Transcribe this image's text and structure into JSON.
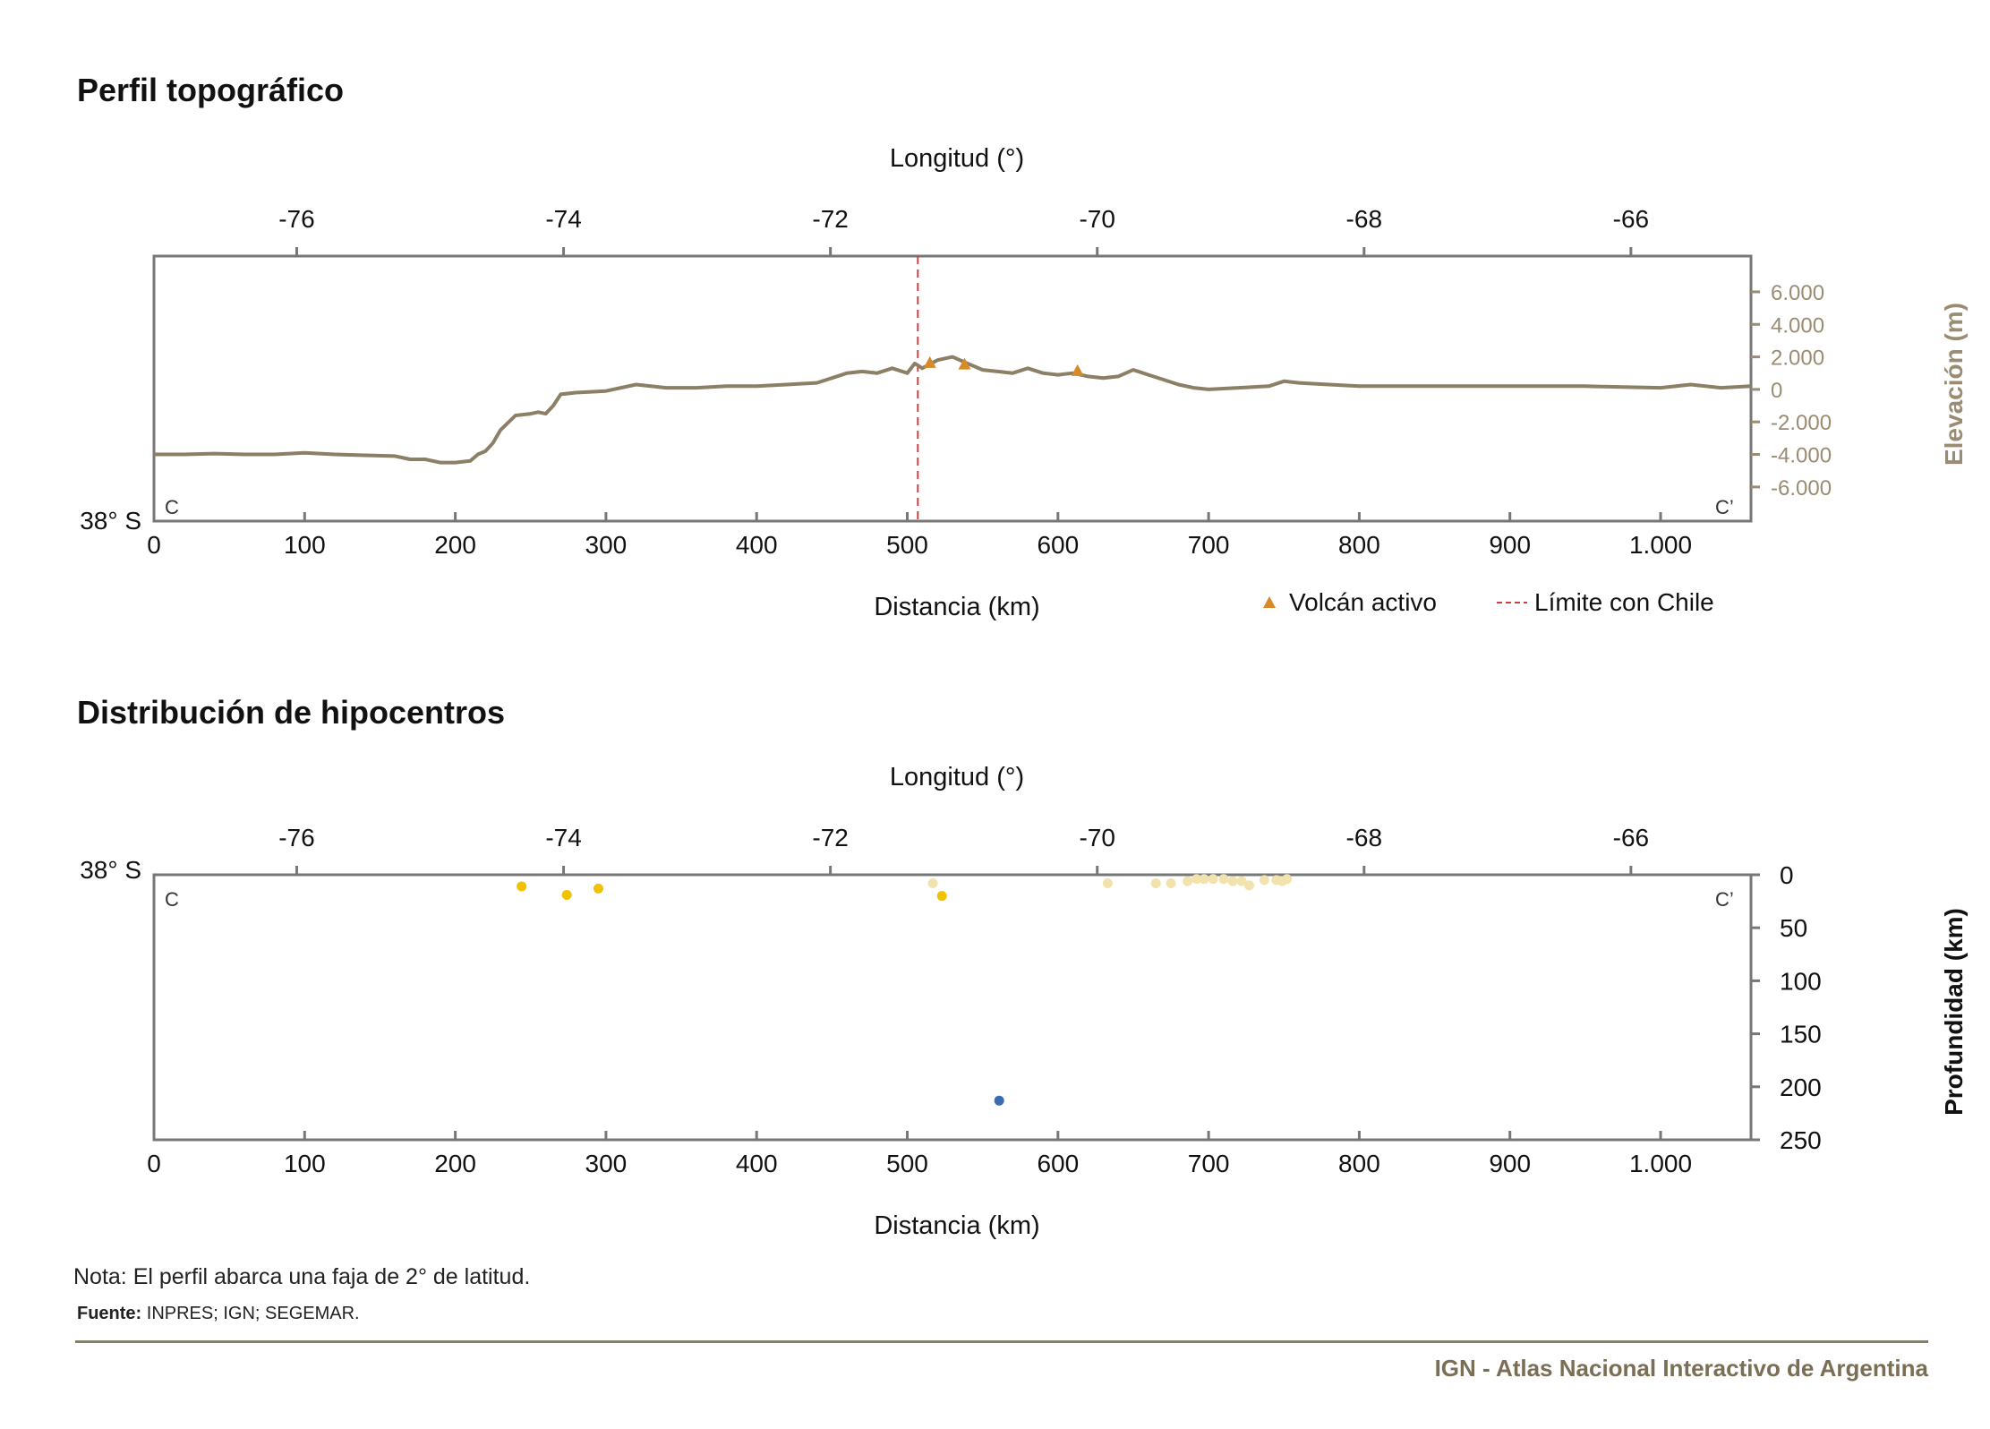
{
  "page": {
    "note": "Nota: El perfil abarca una faja de 2° de latitud.",
    "source_label": "Fuente:",
    "source_text": " INPRES; IGN; SEGEMAR.",
    "footer": "IGN - Atlas Nacional Interactivo de Argentina"
  },
  "colors": {
    "profile_line": "#8b7f66",
    "elevation_axis": "#9a8c72",
    "frame": "#777777",
    "chile_limit": "#d04040",
    "volcano": "#d98a28",
    "quake_shallow_dark": "#f2c100",
    "quake_shallow_light": "#f2e2ae",
    "quake_deep": "#3a6cb0"
  },
  "chart_data": [
    {
      "type": "line",
      "title": "Perfil topográfico",
      "xlabel": "Distancia (km)",
      "x_ticks": [
        0,
        100,
        200,
        300,
        400,
        500,
        600,
        700,
        800,
        900,
        1000
      ],
      "x_tick_labels": [
        "0",
        "100",
        "200",
        "300",
        "400",
        "500",
        "600",
        "700",
        "800",
        "900",
        "1.000"
      ],
      "xlim": [
        0,
        1060
      ],
      "top_axis_label": "Longitud (°)",
      "top_ticks": [
        -76,
        -74,
        -72,
        -70,
        -68,
        -66
      ],
      "top_tick_labels": [
        "-76",
        "-74",
        "-72",
        "-70",
        "-68",
        "-66"
      ],
      "top_xlim": [
        -77.07,
        -65.1
      ],
      "ylabel": "Elevación (m)",
      "y_ticks": [
        6000,
        4000,
        2000,
        0,
        -2000,
        -4000,
        -6000
      ],
      "y_tick_labels": [
        "6.000",
        "4.000",
        "2.000",
        "0",
        "-2.000",
        "-4.000",
        "-6.000"
      ],
      "ylim": [
        -8100,
        8200
      ],
      "latitude_label": "38° S",
      "start_label": "C",
      "end_label": "C’",
      "series": [
        {
          "x": [
            0,
            20,
            40,
            60,
            80,
            100,
            120,
            140,
            160,
            170,
            180,
            190,
            200,
            210,
            215,
            220,
            225,
            230,
            240,
            250,
            255,
            260,
            265,
            270,
            280,
            300,
            320,
            340,
            360,
            380,
            400,
            420,
            440,
            450,
            460,
            470,
            480,
            490,
            500,
            505,
            510,
            520,
            530,
            540,
            550,
            560,
            570,
            580,
            590,
            600,
            610,
            620,
            630,
            640,
            650,
            660,
            670,
            680,
            690,
            700,
            720,
            740,
            750,
            760,
            780,
            800,
            850,
            900,
            950,
            1000,
            1020,
            1040,
            1060
          ],
          "y": [
            -4000,
            -4000,
            -3950,
            -4000,
            -4000,
            -3900,
            -4000,
            -4050,
            -4100,
            -4300,
            -4300,
            -4500,
            -4500,
            -4400,
            -4000,
            -3800,
            -3300,
            -2500,
            -1600,
            -1500,
            -1400,
            -1500,
            -1000,
            -300,
            -200,
            -100,
            300,
            100,
            100,
            200,
            200,
            300,
            400,
            700,
            1000,
            1100,
            1000,
            1300,
            1000,
            1600,
            1300,
            1800,
            2000,
            1600,
            1200,
            1100,
            1000,
            1300,
            1000,
            900,
            1000,
            800,
            700,
            800,
            1200,
            900,
            600,
            300,
            100,
            0,
            100,
            200,
            500,
            400,
            300,
            200,
            200,
            200,
            200,
            100,
            300,
            100,
            200
          ]
        }
      ],
      "volcanoes": {
        "name": "Volcán activo",
        "x": [
          515,
          538,
          613
        ],
        "y": [
          1600,
          1500,
          1100
        ]
      },
      "chile_limit": {
        "name": "Límite con Chile",
        "x": 507
      }
    },
    {
      "type": "scatter",
      "title": "Distribución de hipocentros",
      "xlabel": "Distancia (km)",
      "x_ticks": [
        0,
        100,
        200,
        300,
        400,
        500,
        600,
        700,
        800,
        900,
        1000
      ],
      "x_tick_labels": [
        "0",
        "100",
        "200",
        "300",
        "400",
        "500",
        "600",
        "700",
        "800",
        "900",
        "1.000"
      ],
      "xlim": [
        0,
        1060
      ],
      "top_axis_label": "Longitud (°)",
      "top_ticks": [
        -76,
        -74,
        -72,
        -70,
        -68,
        -66
      ],
      "top_tick_labels": [
        "-76",
        "-74",
        "-72",
        "-70",
        "-68",
        "-66"
      ],
      "top_xlim": [
        -77.07,
        -65.1
      ],
      "ylabel": "Profundidad (km)",
      "y_ticks": [
        0,
        50,
        100,
        150,
        200,
        250
      ],
      "y_tick_labels": [
        "0",
        "50",
        "100",
        "150",
        "200",
        "250"
      ],
      "ylim": [
        0,
        250
      ],
      "latitude_label": "38° S",
      "start_label": "C",
      "end_label": "C’",
      "series": [
        {
          "x": [
            244,
            274,
            295,
            523
          ],
          "y": [
            11,
            19,
            13,
            20
          ]
        },
        {
          "x": [
            517,
            633,
            665,
            675,
            686,
            692,
            697,
            703,
            710,
            716,
            722,
            727,
            737,
            745,
            749,
            752
          ],
          "y": [
            8,
            8,
            8,
            8,
            6,
            4,
            4,
            4,
            4,
            6,
            6,
            10,
            5,
            5,
            6,
            4
          ]
        },
        {
          "x": [
            561
          ],
          "y": [
            213
          ]
        }
      ]
    }
  ]
}
